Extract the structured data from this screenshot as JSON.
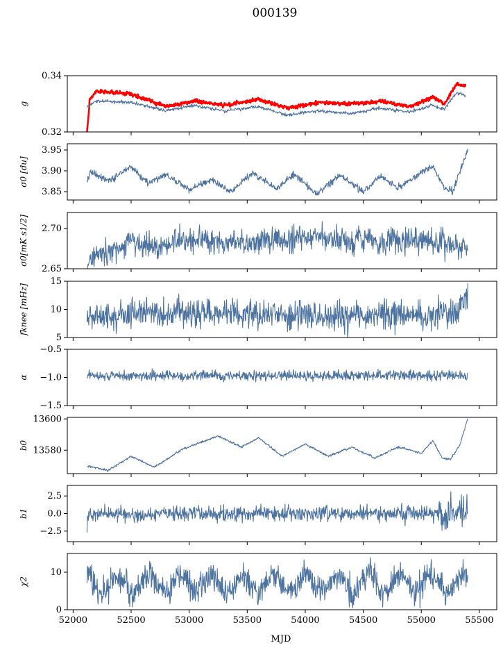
{
  "figure": {
    "title": "000139",
    "xlabel": "MJD"
  },
  "chart_data": [
    {
      "type": "line",
      "ylabel": "g",
      "ylim": [
        0.32,
        0.34
      ],
      "yticks": [
        "0.32",
        "0.34"
      ],
      "ytick_values": [
        0.32,
        0.34
      ],
      "xlim": [
        51950,
        55650
      ],
      "series": [
        {
          "color": "#ff0000",
          "base": 0.3305,
          "amp": 0.002,
          "period": 540,
          "phase": 0.2,
          "noise": 0.00035,
          "band": 0.0014,
          "start_value": 0.32,
          "end_value": 0.332,
          "x": [
            52120,
            52200,
            52500,
            52800,
            53050,
            53300,
            53600,
            53850,
            54100,
            54400,
            54650,
            54900,
            55100,
            55200,
            55300,
            55380
          ],
          "y": [
            0.33,
            0.3345,
            0.3335,
            0.329,
            0.331,
            0.3295,
            0.3315,
            0.3285,
            0.3305,
            0.33,
            0.331,
            0.329,
            0.3325,
            0.33,
            0.337,
            0.3365
          ]
        },
        {
          "color": "#4c72a0",
          "base": 0.3285,
          "amp": 0.0018,
          "period": 540,
          "phase": 0.2,
          "noise": 0.0003,
          "x": [
            52120,
            52200,
            52500,
            52800,
            53050,
            53300,
            53600,
            53850,
            54100,
            54400,
            54650,
            54900,
            55100,
            55200,
            55300,
            55380
          ],
          "y": [
            0.329,
            0.331,
            0.3305,
            0.3275,
            0.3295,
            0.3275,
            0.329,
            0.326,
            0.3275,
            0.3265,
            0.3285,
            0.327,
            0.3295,
            0.328,
            0.334,
            0.333
          ]
        }
      ]
    },
    {
      "type": "line",
      "ylabel": "σ0 [du]",
      "ylim": [
        3.83,
        3.965
      ],
      "yticks": [
        "3.85",
        "3.90",
        "3.95"
      ],
      "ytick_values": [
        3.85,
        3.9,
        3.95
      ],
      "series": [
        {
          "color": "#4c72a0",
          "x": [
            52120,
            52150,
            52300,
            52500,
            52650,
            52800,
            53000,
            53200,
            53350,
            53550,
            53750,
            53900,
            54100,
            54300,
            54500,
            54650,
            54800,
            55000,
            55100,
            55200,
            55270,
            55400
          ],
          "y": [
            3.875,
            3.9,
            3.875,
            3.91,
            3.87,
            3.893,
            3.855,
            3.88,
            3.85,
            3.895,
            3.855,
            3.893,
            3.845,
            3.89,
            3.848,
            3.888,
            3.86,
            3.895,
            3.912,
            3.86,
            3.85,
            3.952
          ]
        }
      ]
    },
    {
      "type": "line",
      "ylabel": "σ0[mK s1/2]",
      "ylim": [
        2.65,
        2.72
      ],
      "yticks": [
        "2.65",
        "2.70"
      ],
      "ytick_values": [
        2.65,
        2.7
      ],
      "series": [
        {
          "color": "#4c72a0",
          "x": [
            52120,
            52200,
            52400,
            52500,
            52600,
            52800,
            52900,
            53100,
            53300,
            53500,
            53700,
            53900,
            54100,
            54300,
            54500,
            54700,
            54900,
            55100,
            55300,
            55400
          ],
          "y": [
            2.65,
            2.672,
            2.675,
            2.69,
            2.678,
            2.68,
            2.685,
            2.688,
            2.684,
            2.682,
            2.686,
            2.687,
            2.69,
            2.684,
            2.686,
            2.682,
            2.686,
            2.684,
            2.68,
            2.675
          ]
        }
      ]
    },
    {
      "type": "line",
      "ylabel": "fknee [mHz]",
      "ylim": [
        5,
        15
      ],
      "yticks": [
        "5",
        "10",
        "15"
      ],
      "ytick_values": [
        5,
        10,
        15
      ],
      "series": [
        {
          "color": "#4c72a0",
          "x": [
            52120,
            52500,
            53000,
            53500,
            54000,
            54500,
            55000,
            55300,
            55400
          ],
          "y": [
            8.5,
            9.2,
            9.4,
            9.3,
            9.0,
            8.8,
            8.8,
            9.0,
            12.2
          ]
        }
      ]
    },
    {
      "type": "line",
      "ylabel": "α",
      "ylim": [
        -1.5,
        -0.5
      ],
      "yticks": [
        "−1.5",
        "−1.0",
        "−0.5"
      ],
      "ytick_values": [
        -1.5,
        -1.0,
        -0.5
      ],
      "series": [
        {
          "color": "#4c72a0",
          "x": [
            52120,
            55400
          ],
          "y": [
            -0.97,
            -0.97
          ]
        }
      ]
    },
    {
      "type": "line",
      "ylabel": "b0",
      "ylim": [
        13565,
        13601
      ],
      "yticks": [
        "13580",
        "13600"
      ],
      "ytick_values": [
        13580,
        13600
      ],
      "series": [
        {
          "color": "#4c72a0",
          "x": [
            52120,
            52300,
            52500,
            52700,
            52950,
            53250,
            53450,
            53600,
            53800,
            54000,
            54200,
            54400,
            54600,
            54800,
            55000,
            55100,
            55180,
            55250,
            55330,
            55400
          ],
          "y": [
            13570,
            13567,
            13576,
            13569,
            13581,
            13589,
            13582,
            13588,
            13576,
            13584,
            13576,
            13582,
            13575,
            13582,
            13578,
            13586,
            13575,
            13574,
            13583,
            13600
          ]
        }
      ]
    },
    {
      "type": "line",
      "ylabel": "b1",
      "ylim": [
        -4,
        4
      ],
      "yticks": [
        "−2.5",
        "0.0",
        "2.5"
      ],
      "ytick_values": [
        -2.5,
        0.0,
        2.5
      ],
      "series": [
        {
          "color": "#4c72a0",
          "x": [
            52120,
            55400
          ],
          "y": [
            0.0,
            0.0
          ]
        }
      ]
    },
    {
      "type": "line",
      "ylabel": "χ2",
      "ylim": [
        0,
        15
      ],
      "yticks": [
        "0",
        "10"
      ],
      "ytick_values": [
        0,
        10
      ],
      "series": [
        {
          "color": "#4c72a0",
          "x": [
            52120,
            55400
          ],
          "y": [
            7.0,
            7.0
          ]
        }
      ]
    }
  ],
  "xticks": [
    "52000",
    "52500",
    "53000",
    "53500",
    "54000",
    "54500",
    "55000",
    "55500"
  ],
  "xtick_values": [
    52000,
    52500,
    53000,
    53500,
    54000,
    54500,
    55000,
    55500
  ]
}
